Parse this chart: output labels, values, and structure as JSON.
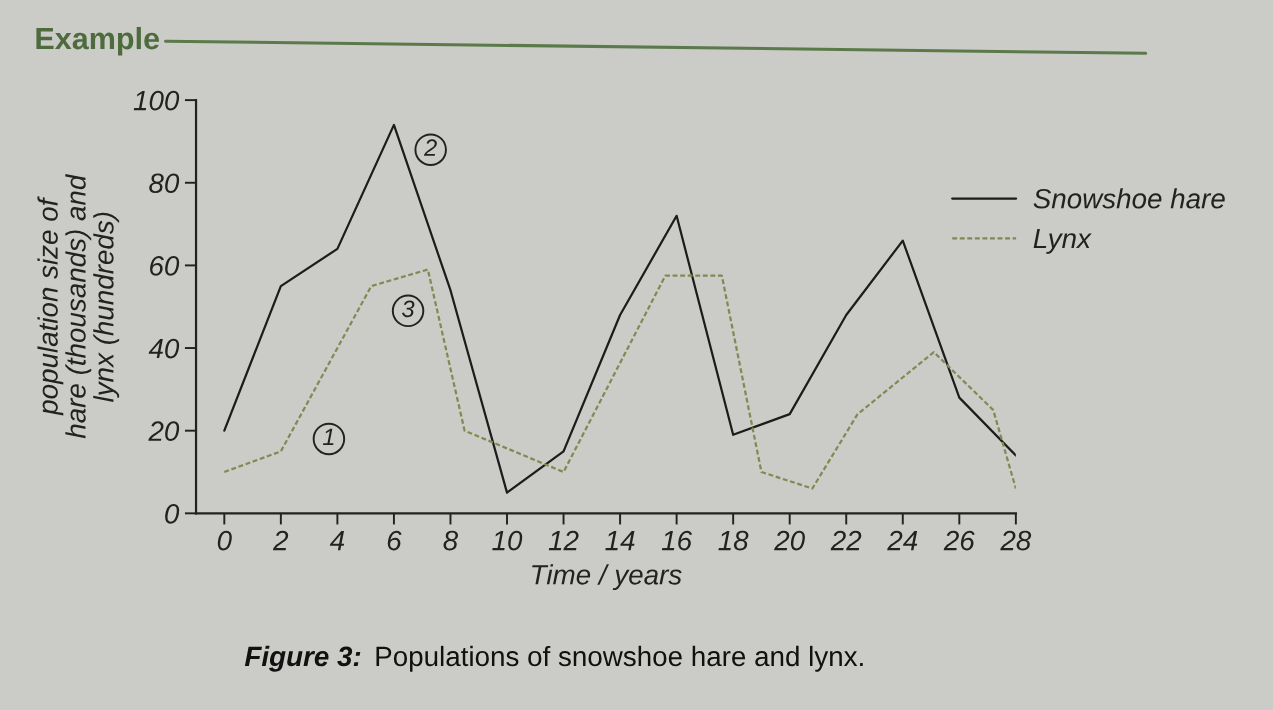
{
  "chart_data": {
    "type": "line",
    "title": "Example",
    "xlabel": "Time / years",
    "ylabel": "population size of\nhare (thousands) and\nlynx (hundreds)",
    "annotations": [
      {
        "text": "1",
        "x": 3.7,
        "y": 18
      },
      {
        "text": "2",
        "x": 7.3,
        "y": 88
      },
      {
        "text": "3",
        "x": 6.5,
        "y": 49
      },
      "Figure 3:",
      "Populations of snowshoe hare and lynx."
    ],
    "series": [
      {
        "name": "Snowshoe hare",
        "color": "#1c1c1c",
        "line_style": "solid",
        "x": [
          0,
          2,
          4,
          6,
          8,
          10,
          12,
          14,
          16,
          18,
          20,
          22,
          24,
          26,
          28
        ],
        "values": [
          20,
          55,
          64,
          94,
          54,
          5,
          15,
          48,
          72,
          19,
          24,
          48,
          66,
          28,
          14
        ]
      },
      {
        "name": "Lynx",
        "color": "#7d8c52",
        "line_style": "dashed",
        "x": [
          0,
          2,
          5.2,
          7.2,
          8.5,
          12,
          15.6,
          17.6,
          19,
          20.8,
          22.4,
          25.1,
          27.2,
          28
        ],
        "values": [
          10,
          15,
          55,
          59,
          20,
          10,
          57.5,
          57.5,
          10,
          6,
          24,
          39,
          25,
          6
        ]
      }
    ],
    "xlim": [
      -1,
      28
    ],
    "ylim": [
      0,
      100
    ],
    "xticks": [
      0,
      2,
      4,
      6,
      8,
      10,
      12,
      14,
      16,
      18,
      20,
      22,
      24,
      26,
      28
    ],
    "yticks": [
      0,
      20,
      40,
      60,
      80,
      100
    ],
    "legend": "top right"
  }
}
